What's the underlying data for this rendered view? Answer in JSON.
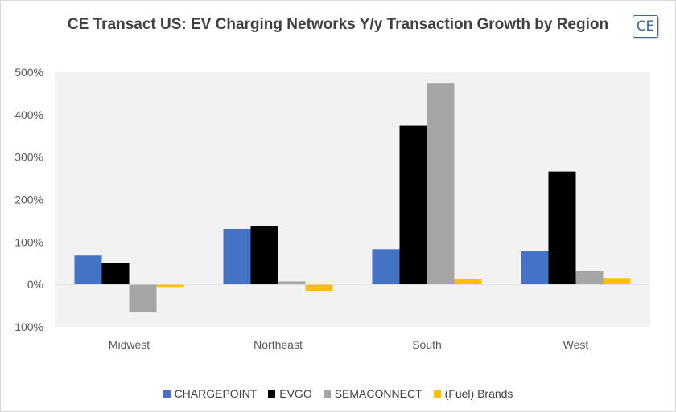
{
  "title": "CE Transact US: EV Charging Networks Y/y Transaction Growth by Region",
  "logo_text": "CE",
  "chart_data": {
    "type": "bar",
    "title": "CE Transact US: EV Charging Networks Y/y Transaction Growth by Region",
    "xlabel": "",
    "ylabel": "",
    "categories": [
      "Midwest",
      "Northeast",
      "South",
      "West"
    ],
    "series": [
      {
        "name": "CHARGEPOINT",
        "color": "#4472c4",
        "values": [
          68,
          131,
          83,
          79
        ]
      },
      {
        "name": "EVGO",
        "color": "#000000",
        "values": [
          50,
          137,
          374,
          266
        ]
      },
      {
        "name": "SEMACONNECT",
        "color": "#a5a5a5",
        "values": [
          -66,
          7,
          475,
          31
        ]
      },
      {
        "name": "(Fuel) Brands",
        "color": "#ffc000",
        "values": [
          -6,
          -15,
          12,
          15
        ]
      }
    ],
    "ylim": [
      -100,
      500
    ],
    "yticks": [
      "-100%",
      "0%",
      "100%",
      "200%",
      "300%",
      "400%",
      "500%"
    ],
    "ytick_values": [
      -100,
      0,
      100,
      200,
      300,
      400,
      500
    ],
    "grid": false,
    "legend": "bottom",
    "plot_background": "#f2f2f2"
  }
}
